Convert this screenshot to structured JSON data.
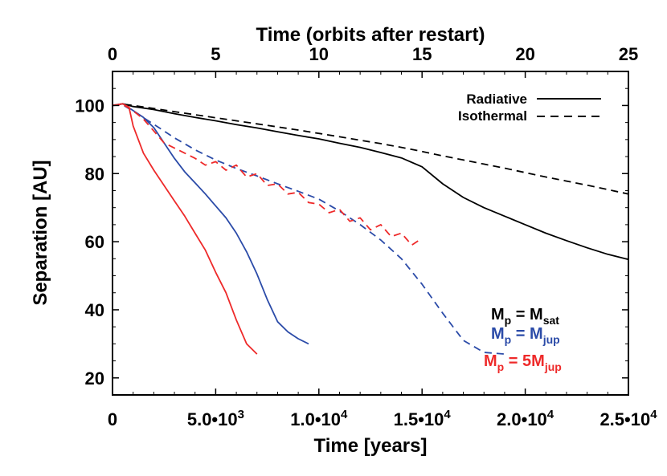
{
  "chart_data": {
    "type": "line",
    "xlabel": "Time [years]",
    "x2label": "Time (orbits after restart)",
    "ylabel": "Separation [AU]",
    "xlim": [
      0,
      25000
    ],
    "x2lim": [
      0,
      25
    ],
    "ylim": [
      15,
      110
    ],
    "x_ticks": [
      0,
      5000,
      10000,
      15000,
      20000,
      25000
    ],
    "x_tick_labels": [
      "0",
      "5.0•10",
      "1.0•10",
      "1.5•10",
      "2.0•10",
      "2.5•10"
    ],
    "x_tick_exponents": [
      "",
      "3",
      "4",
      "4",
      "4",
      "4"
    ],
    "x2_ticks": [
      0,
      5,
      10,
      15,
      20,
      25
    ],
    "x2_tick_labels": [
      "0",
      "5",
      "10",
      "15",
      "20",
      "25"
    ],
    "y_ticks": [
      20,
      40,
      60,
      80,
      100
    ],
    "y_tick_labels": [
      "20",
      "40",
      "60",
      "80",
      "100"
    ],
    "legend": {
      "placement": "top-right",
      "entries": [
        {
          "label": "Radiative",
          "style": "solid"
        },
        {
          "label": "Isothermal",
          "style": "dashed"
        }
      ]
    },
    "mass_labels": [
      {
        "prefix": "M",
        "sub1": "p",
        "mid": " =  M",
        "sub2": "sat",
        "color": "#000000"
      },
      {
        "prefix": "M",
        "sub1": "p",
        "mid": " =  M",
        "sub2": "jup",
        "color": "#2b4ba8"
      },
      {
        "prefix": "M",
        "sub1": "p",
        "mid": " = 5M",
        "sub2": "jup",
        "color": "#ee2a2a"
      }
    ],
    "series": [
      {
        "mass": "Msat",
        "model": "Radiative",
        "color": "#000000",
        "style": "solid",
        "x": [
          0,
          500,
          1000,
          2000,
          3000,
          4000,
          5000,
          6000,
          7000,
          8000,
          9000,
          10000,
          11000,
          12000,
          13000,
          14000,
          15000,
          16000,
          17000,
          18000,
          19000,
          20000,
          21000,
          22000,
          23000,
          24000,
          25000
        ],
        "y": [
          100,
          100.5,
          99.7,
          98.8,
          97.6,
          96.5,
          95.5,
          94.4,
          93.4,
          92.3,
          91.2,
          90.2,
          88.9,
          87.7,
          86.2,
          84.6,
          82.0,
          77.0,
          73.0,
          70.0,
          67.5,
          65.0,
          62.5,
          60.3,
          58.2,
          56.3,
          54.8
        ]
      },
      {
        "mass": "Msat",
        "model": "Isothermal",
        "color": "#000000",
        "style": "dashed",
        "x": [
          0,
          500,
          1000,
          2000,
          3000,
          4000,
          5000,
          6000,
          7000,
          8000,
          9000,
          10000,
          11000,
          12000,
          13000,
          14000,
          15000,
          16000,
          17000,
          18000,
          19000,
          20000,
          21000,
          22000,
          23000,
          24000,
          25000
        ],
        "y": [
          100,
          100.4,
          100.0,
          99.1,
          98.2,
          97.3,
          96.4,
          95.5,
          94.6,
          93.7,
          92.8,
          91.8,
          90.8,
          89.8,
          88.8,
          87.7,
          86.5,
          85.2,
          84.0,
          82.8,
          81.6,
          80.3,
          79.0,
          77.8,
          76.6,
          75.3,
          74.0
        ]
      },
      {
        "mass": "Mjup",
        "model": "Radiative",
        "color": "#2b4ba8",
        "style": "solid",
        "x": [
          0,
          500,
          1000,
          1500,
          2000,
          2500,
          3000,
          3500,
          4000,
          4500,
          5000,
          5500,
          6000,
          6500,
          7000,
          7500,
          8000,
          8500,
          9000,
          9500
        ],
        "y": [
          100,
          100.5,
          98.5,
          96.5,
          93.5,
          89.0,
          84.5,
          80.5,
          77.3,
          74.0,
          70.5,
          67.0,
          62.5,
          57.0,
          50.5,
          43.0,
          36.5,
          33.5,
          31.5,
          30.0
        ]
      },
      {
        "mass": "Mjup",
        "model": "Isothermal",
        "color": "#2b4ba8",
        "style": "dashed",
        "x": [
          0,
          500,
          1000,
          2000,
          3000,
          4000,
          5000,
          6000,
          7000,
          8000,
          9000,
          10000,
          11000,
          12000,
          13000,
          14000,
          15000,
          16000,
          17000,
          18000,
          19000
        ],
        "y": [
          100,
          100.2,
          98.3,
          94.5,
          90.5,
          87.0,
          84.0,
          81.5,
          79.3,
          77.0,
          74.8,
          72.5,
          69.0,
          65.0,
          60.5,
          55.0,
          47.5,
          39.0,
          31.0,
          27.5,
          27.0
        ]
      },
      {
        "mass": "5Mjup",
        "model": "Radiative",
        "color": "#ee2a2a",
        "style": "solid",
        "x": [
          0,
          500,
          800,
          1000,
          1500,
          2000,
          2500,
          3000,
          3500,
          4000,
          4500,
          5000,
          5500,
          6000,
          6500,
          7000
        ],
        "y": [
          100,
          100.5,
          99.5,
          94.0,
          86.0,
          81.0,
          76.5,
          72.0,
          67.5,
          62.5,
          57.5,
          51.0,
          45.0,
          37.0,
          30.0,
          27.0
        ]
      },
      {
        "mass": "5Mjup",
        "model": "Isothermal",
        "color": "#ee2a2a",
        "style": "dashed",
        "x": [
          0,
          500,
          1000,
          1500,
          2000,
          2500,
          3000,
          3500,
          4000,
          4500,
          5000,
          5500,
          6000,
          6500,
          7000,
          7500,
          8000,
          8500,
          9000,
          9500,
          10000,
          10500,
          11000,
          11500,
          12000,
          12500,
          13000,
          13500,
          14000,
          14500,
          15000
        ],
        "y": [
          100,
          100.3,
          98.5,
          96.0,
          92.5,
          89.0,
          87.5,
          86.0,
          84.5,
          82.5,
          83.5,
          81.0,
          82.5,
          79.0,
          80.0,
          76.5,
          77.0,
          74.0,
          74.5,
          71.5,
          71.0,
          68.5,
          69.5,
          66.0,
          67.0,
          63.5,
          65.0,
          61.5,
          62.5,
          59.0,
          61.0
        ]
      }
    ]
  }
}
